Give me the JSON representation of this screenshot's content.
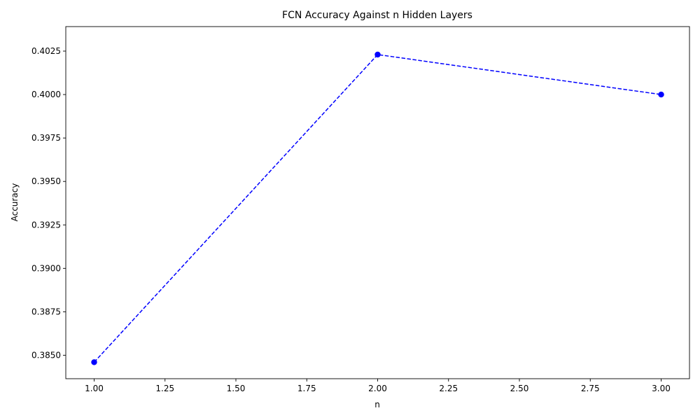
{
  "chart_data": {
    "type": "line",
    "title": "FCN Accuracy Against n Hidden Layers",
    "xlabel": "n",
    "ylabel": "Accuracy",
    "xlim": [
      0.9,
      3.1
    ],
    "ylim": [
      0.38365,
      0.40391
    ],
    "xticks": [
      1.0,
      1.25,
      1.5,
      1.75,
      2.0,
      2.25,
      2.5,
      2.75,
      3.0
    ],
    "xtick_labels": [
      "1.00",
      "1.25",
      "1.50",
      "1.75",
      "2.00",
      "2.25",
      "2.50",
      "2.75",
      "3.00"
    ],
    "yticks": [
      0.385,
      0.3875,
      0.39,
      0.3925,
      0.395,
      0.3975,
      0.4,
      0.4025
    ],
    "ytick_labels": [
      "0.3850",
      "0.3875",
      "0.3900",
      "0.3925",
      "0.3950",
      "0.3975",
      "0.4000",
      "0.4025"
    ],
    "grid": false,
    "series": [
      {
        "x": [
          1,
          2,
          3
        ],
        "y": [
          0.3846,
          0.4023,
          0.4
        ],
        "color": "#0000ff",
        "linestyle": "dashed",
        "marker": "circle"
      }
    ]
  }
}
